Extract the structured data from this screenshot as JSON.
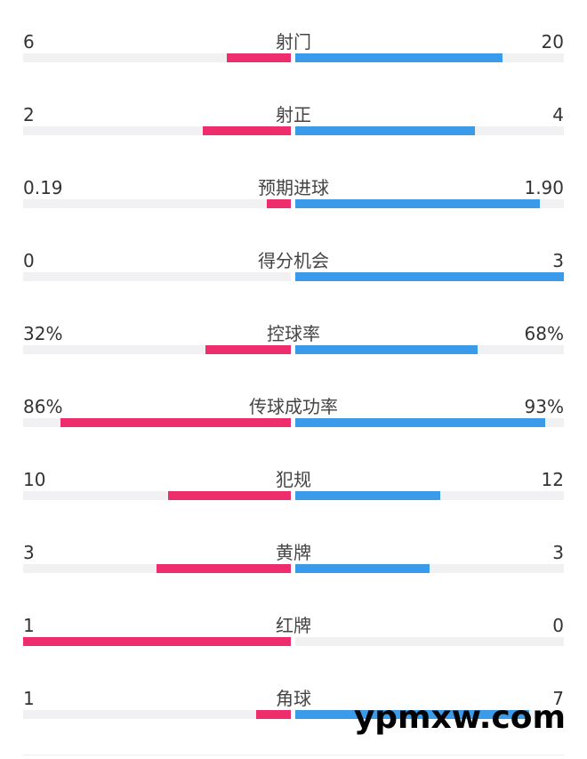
{
  "colors": {
    "home": "#ee2d6c",
    "away": "#3a9bea",
    "track": "#f1f1f3"
  },
  "chart_data": {
    "type": "bar",
    "orientation": "horizontal-diverging",
    "categories": [
      "射门",
      "射正",
      "预期进球",
      "得分机会",
      "控球率",
      "传球成功率",
      "犯规",
      "黄牌",
      "红牌",
      "角球"
    ],
    "series": [
      {
        "values": [
          "6",
          "2",
          "0.19",
          "0",
          "32%",
          "86%",
          "10",
          "3",
          "1",
          "1"
        ],
        "fill": [
          0.24,
          0.33,
          0.09,
          0,
          0.32,
          0.86,
          0.46,
          0.5,
          1.0,
          0.13
        ]
      },
      {
        "values": [
          "20",
          "4",
          "1.90",
          "3",
          "68%",
          "93%",
          "12",
          "3",
          "0",
          "7"
        ],
        "fill": [
          0.77,
          0.67,
          0.91,
          1.0,
          0.68,
          0.93,
          0.54,
          0.5,
          0,
          0.87
        ]
      }
    ]
  },
  "watermark": "ypmxw.com"
}
